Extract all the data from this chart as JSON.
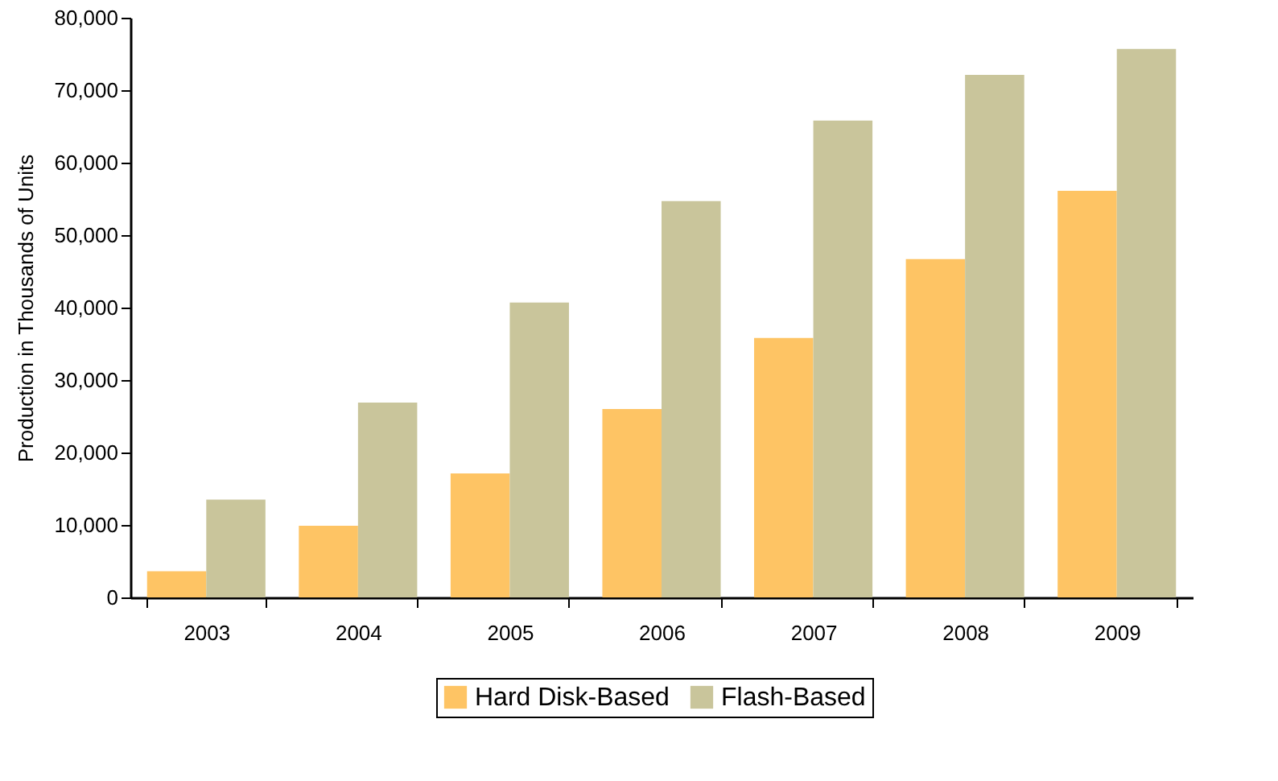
{
  "chart_data": {
    "type": "bar",
    "ylabel": "Production in Thousands of Units",
    "categories": [
      "2003",
      "2004",
      "2005",
      "2006",
      "2007",
      "2008",
      "2009"
    ],
    "series": [
      {
        "name": "Hard Disk-Based",
        "color": "#fec464",
        "values": [
          3600,
          9900,
          17100,
          26000,
          35800,
          46700,
          56100
        ]
      },
      {
        "name": "Flash-Based",
        "color": "#c9c59b",
        "values": [
          13500,
          26900,
          40700,
          54700,
          65800,
          72100,
          75700
        ]
      }
    ],
    "ylim": [
      0,
      80000
    ],
    "yticks": [
      0,
      {
        "value": 10000,
        "label": "10,000"
      },
      {
        "value": 20000,
        "label": "20,000"
      },
      {
        "value": 30000,
        "label": "30,000"
      },
      {
        "value": 40000,
        "label": "40,000"
      },
      {
        "value": 50000,
        "label": "50,000"
      },
      {
        "value": 60000,
        "label": "60,000"
      },
      {
        "value": 70000,
        "label": "70,000"
      },
      {
        "value": 80000,
        "label": "80,000"
      }
    ],
    "grid": false,
    "legend": "bottom"
  }
}
